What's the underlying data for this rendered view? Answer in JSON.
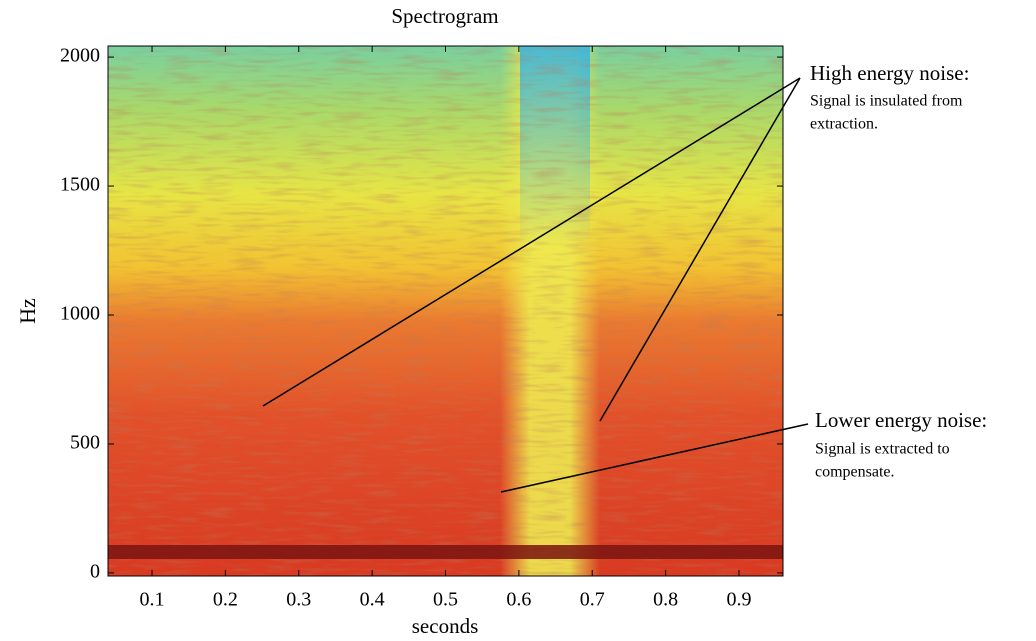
{
  "chart_data": {
    "type": "heatmap",
    "title": "Spectrogram",
    "xlabel": "seconds",
    "ylabel": "Hz",
    "xlim": [
      0.04,
      0.96
    ],
    "ylim": [
      -12,
      2043
    ],
    "xticks": [
      0.1,
      0.2,
      0.3,
      0.4,
      0.5,
      0.6,
      0.7,
      0.8,
      0.9
    ],
    "yticks": [
      0,
      500,
      1000,
      1500,
      2000
    ],
    "annotations": [
      {
        "title": "High energy noise:",
        "lines": [
          "Signal is insulated from",
          "extraction."
        ]
      },
      {
        "title": "Lower energy noise:",
        "lines": [
          "Signal is extracted to",
          "compensate."
        ]
      }
    ]
  }
}
